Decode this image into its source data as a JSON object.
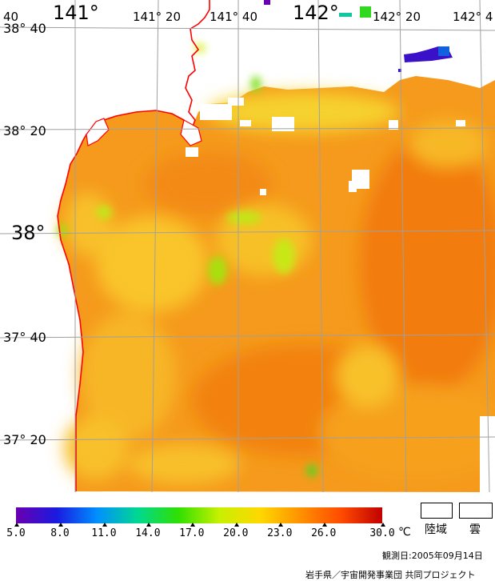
{
  "map": {
    "lon_labels": [
      {
        "text": "141°",
        "size": "big"
      },
      {
        "text": "141° 20",
        "size": "sm"
      },
      {
        "text": "141° 40",
        "size": "sm"
      },
      {
        "text": "142°",
        "size": "big"
      },
      {
        "text": "142° 20",
        "size": "sm"
      },
      {
        "text": "142° 4",
        "size": "sm"
      }
    ],
    "lat_labels": [
      {
        "text": "38° 40",
        "size": "sm"
      },
      {
        "text": "38° 20",
        "size": "sm"
      },
      {
        "text": "38°",
        "size": "big"
      },
      {
        "text": "37° 40",
        "size": "sm"
      },
      {
        "text": "37° 20",
        "size": "sm"
      }
    ],
    "corner_label": "40",
    "colors": {
      "land": "#ffffff",
      "coast": "#ff0000",
      "grid": "#a0a0a0",
      "sea_base": "#f59a1c"
    }
  },
  "colorbar": {
    "ticks": [
      "5.0",
      "8.0",
      "11.0",
      "14.0",
      "17.0",
      "20.0",
      "23.0",
      "26.0",
      "30.0"
    ],
    "unit": "℃",
    "stops": [
      "#6a00b0",
      "#1a1ae0",
      "#0090ff",
      "#00d890",
      "#30e000",
      "#c8f000",
      "#ffd800",
      "#ff9000",
      "#ff4a00",
      "#c00000"
    ]
  },
  "legend": {
    "land_label": "陸域",
    "cloud_label": "雲"
  },
  "footer": {
    "date": "観測日:2005年09月14日",
    "credit": "岩手県／宇宙開発事業団 共同プロジェクト"
  }
}
